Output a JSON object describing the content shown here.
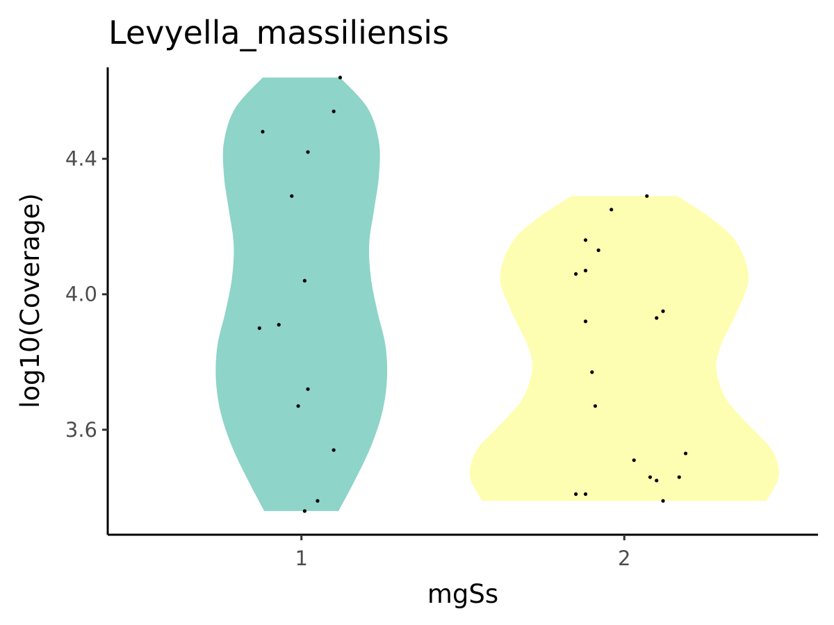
{
  "chart_data": {
    "type": "violin",
    "title": "Levyella_massiliensis",
    "xlabel": "mgSs",
    "ylabel": "log10(Coverage)",
    "categories": [
      "1",
      "2"
    ],
    "ylim": [
      3.29,
      4.67
    ],
    "yticks": [
      3.6,
      4.0,
      4.4
    ],
    "ytick_labels": [
      "3.6",
      "4.0",
      "4.4"
    ],
    "grid": false,
    "legend": "none",
    "colors": {
      "1": "#8ED4C9",
      "2": "#FEFEB2"
    },
    "violins": [
      {
        "category": "1",
        "ymin": 3.36,
        "ymax": 4.64,
        "profile": [
          [
            3.36,
            0.23
          ],
          [
            3.45,
            0.33
          ],
          [
            3.55,
            0.43
          ],
          [
            3.65,
            0.5
          ],
          [
            3.75,
            0.53
          ],
          [
            3.85,
            0.52
          ],
          [
            3.95,
            0.47
          ],
          [
            4.05,
            0.43
          ],
          [
            4.15,
            0.42
          ],
          [
            4.25,
            0.45
          ],
          [
            4.35,
            0.48
          ],
          [
            4.45,
            0.48
          ],
          [
            4.55,
            0.41
          ],
          [
            4.64,
            0.24
          ]
        ],
        "points": [
          4.64,
          4.54,
          4.48,
          4.42,
          4.29,
          4.04,
          3.91,
          3.9,
          3.72,
          3.67,
          3.54,
          3.39,
          3.36
        ],
        "jitter": [
          0.12,
          0.1,
          -0.12,
          0.02,
          -0.03,
          0.01,
          -0.07,
          -0.13,
          0.02,
          -0.01,
          0.1,
          0.05,
          0.01
        ]
      },
      {
        "category": "2",
        "ymin": 3.39,
        "ymax": 4.29,
        "profile": [
          [
            3.39,
            0.88
          ],
          [
            3.45,
            0.95
          ],
          [
            3.5,
            0.95
          ],
          [
            3.55,
            0.9
          ],
          [
            3.6,
            0.8
          ],
          [
            3.65,
            0.7
          ],
          [
            3.7,
            0.62
          ],
          [
            3.78,
            0.57
          ],
          [
            3.85,
            0.6
          ],
          [
            3.95,
            0.7
          ],
          [
            4.05,
            0.77
          ],
          [
            4.15,
            0.7
          ],
          [
            4.22,
            0.55
          ],
          [
            4.29,
            0.33
          ]
        ],
        "points": [
          4.29,
          4.25,
          4.16,
          4.13,
          4.07,
          4.06,
          3.95,
          3.93,
          3.92,
          3.77,
          3.67,
          3.53,
          3.51,
          3.46,
          3.46,
          3.45,
          3.41,
          3.41,
          3.39
        ],
        "jitter": [
          0.07,
          -0.04,
          -0.12,
          -0.08,
          -0.12,
          -0.15,
          0.12,
          0.1,
          -0.12,
          -0.1,
          -0.09,
          0.19,
          0.03,
          0.17,
          0.08,
          0.1,
          -0.15,
          -0.12,
          0.12
        ]
      }
    ]
  }
}
